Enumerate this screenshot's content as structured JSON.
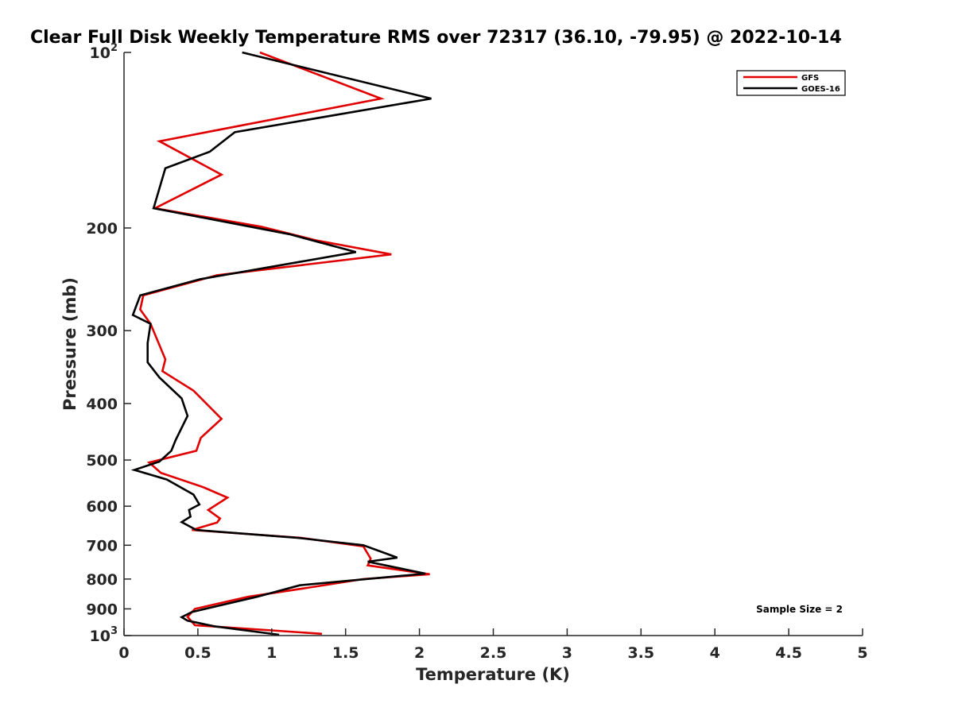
{
  "chart_data": {
    "type": "line",
    "title": "Clear Full Disk Weekly Temperature RMS over 72317 (36.10, -79.95) @ 2022-10-14",
    "xlabel": "Temperature (K)",
    "ylabel": "Pressure (mb)",
    "xlim": [
      0,
      5
    ],
    "ylim": [
      100,
      1000
    ],
    "y_scale": "log",
    "y_reversed": true,
    "x_ticks": [
      0,
      0.5,
      1,
      1.5,
      2,
      2.5,
      3,
      3.5,
      4,
      4.5,
      5
    ],
    "x_tick_labels": [
      "0",
      "0.5",
      "1",
      "1.5",
      "2",
      "2.5",
      "3",
      "3.5",
      "4",
      "4.5",
      "5"
    ],
    "y_ticks": [
      {
        "value": 100,
        "base": "10",
        "exp": "2"
      },
      {
        "value": 200,
        "label": "200"
      },
      {
        "value": 300,
        "label": "300"
      },
      {
        "value": 400,
        "label": "400"
      },
      {
        "value": 500,
        "label": "500"
      },
      {
        "value": 600,
        "label": "600"
      },
      {
        "value": 700,
        "label": "700"
      },
      {
        "value": 800,
        "label": "800"
      },
      {
        "value": 900,
        "label": "900"
      },
      {
        "value": 1000,
        "base": "10",
        "exp": "3"
      }
    ],
    "grid": false,
    "legend_position": "top-right",
    "annotation": "Sample Size = 2",
    "series": [
      {
        "name": "GFS",
        "color": "#e00000",
        "points": [
          [
            0.92,
            100
          ],
          [
            1.74,
            120
          ],
          [
            0.24,
            142
          ],
          [
            0.66,
            162
          ],
          [
            0.21,
            185
          ],
          [
            0.93,
            199
          ],
          [
            1.3,
            210
          ],
          [
            1.81,
            222
          ],
          [
            0.63,
            241
          ],
          [
            0.13,
            261
          ],
          [
            0.11,
            276
          ],
          [
            0.18,
            292
          ],
          [
            0.28,
            336
          ],
          [
            0.26,
            352
          ],
          [
            0.47,
            380
          ],
          [
            0.66,
            425
          ],
          [
            0.52,
            458
          ],
          [
            0.49,
            482
          ],
          [
            0.17,
            505
          ],
          [
            0.25,
            526
          ],
          [
            0.54,
            557
          ],
          [
            0.7,
            580
          ],
          [
            0.57,
            609
          ],
          [
            0.65,
            630
          ],
          [
            0.63,
            640
          ],
          [
            0.46,
            659
          ],
          [
            1.2,
            680
          ],
          [
            1.62,
            703
          ],
          [
            1.67,
            738
          ],
          [
            1.65,
            758
          ],
          [
            2.07,
            785
          ],
          [
            1.62,
            800
          ],
          [
            1.26,
            827
          ],
          [
            0.84,
            858
          ],
          [
            0.48,
            900
          ],
          [
            0.43,
            929
          ],
          [
            0.48,
            960
          ],
          [
            1.34,
            993
          ]
        ]
      },
      {
        "name": "GOES-16",
        "color": "#000000",
        "points": [
          [
            0.8,
            100
          ],
          [
            2.08,
            120
          ],
          [
            0.75,
            137
          ],
          [
            0.58,
            148
          ],
          [
            0.28,
            158
          ],
          [
            0.2,
            185
          ],
          [
            1.12,
            205
          ],
          [
            1.57,
            220
          ],
          [
            0.51,
            245
          ],
          [
            0.11,
            261
          ],
          [
            0.06,
            282
          ],
          [
            0.18,
            292
          ],
          [
            0.16,
            315
          ],
          [
            0.16,
            340
          ],
          [
            0.24,
            361
          ],
          [
            0.39,
            392
          ],
          [
            0.43,
            420
          ],
          [
            0.35,
            462
          ],
          [
            0.32,
            482
          ],
          [
            0.24,
            503
          ],
          [
            0.07,
            520
          ],
          [
            0.29,
            540
          ],
          [
            0.47,
            573
          ],
          [
            0.51,
            596
          ],
          [
            0.44,
            609
          ],
          [
            0.45,
            625
          ],
          [
            0.39,
            639
          ],
          [
            0.49,
            659
          ],
          [
            1.18,
            680
          ],
          [
            1.62,
            700
          ],
          [
            1.85,
            735
          ],
          [
            1.65,
            747
          ],
          [
            2.04,
            783
          ],
          [
            1.19,
            820
          ],
          [
            0.9,
            858
          ],
          [
            0.46,
            911
          ],
          [
            0.39,
            930
          ],
          [
            0.43,
            943
          ],
          [
            0.62,
            965
          ],
          [
            1.05,
            997
          ]
        ]
      }
    ]
  }
}
